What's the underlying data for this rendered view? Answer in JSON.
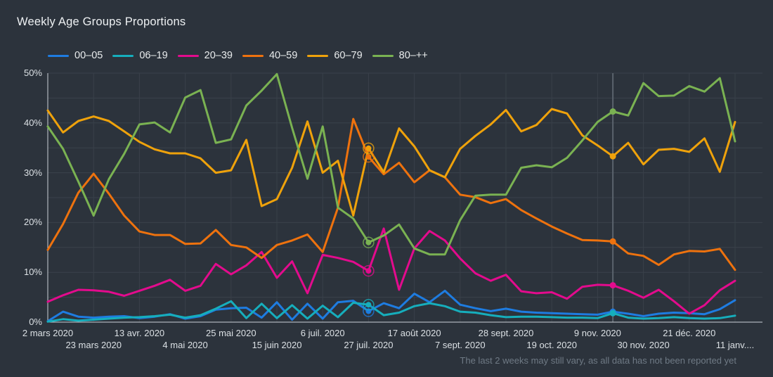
{
  "header": {
    "title": "Weekly Age Groups Proportions"
  },
  "footer": {
    "note": "The last 2 weeks may still vary, as all data has not been reported yet"
  },
  "colors": {
    "background": "#2c333c",
    "grid_horizontal": "#3a424b",
    "grid_vertical": "#394049",
    "axis_line": "#ccd2d7",
    "crosshair": "#5a636c",
    "tick_text": "#dbe0e4",
    "note_text": "#6f7a85"
  },
  "chart_data": {
    "type": "line",
    "title": "Weekly Age Groups Proportions",
    "xlabel": "",
    "ylabel": "",
    "ylim": [
      0,
      50
    ],
    "grid": "on",
    "legend_position": "top",
    "y_tick_labels": [
      "0%",
      "10%",
      "20%",
      "30%",
      "40%",
      "50%"
    ],
    "y_minor_grid_step_percent": 5,
    "week_count": 46,
    "x_start": "2 mars 2020",
    "x_interval": "weekly",
    "x_ticks_row1": [
      {
        "week": 0,
        "label": "2 mars 2020"
      },
      {
        "week": 6,
        "label": "13 avr. 2020"
      },
      {
        "week": 12,
        "label": "25 mai 2020"
      },
      {
        "week": 18,
        "label": "6 juil. 2020"
      },
      {
        "week": 24,
        "label": "17 août 2020"
      },
      {
        "week": 30,
        "label": "28 sept. 2020"
      },
      {
        "week": 36,
        "label": "9 nov. 2020"
      },
      {
        "week": 42,
        "label": "21 déc. 2020"
      }
    ],
    "x_ticks_row2": [
      {
        "week": 3,
        "label": "23 mars 2020"
      },
      {
        "week": 9,
        "label": "4 mai 2020"
      },
      {
        "week": 15,
        "label": "15 juin 2020"
      },
      {
        "week": 21,
        "label": "27 juil. 2020"
      },
      {
        "week": 27,
        "label": "7 sept. 2020"
      },
      {
        "week": 33,
        "label": "19 oct. 2020"
      },
      {
        "week": 39,
        "label": "30 nov. 2020"
      },
      {
        "week": 45,
        "label": "11 janv...."
      }
    ],
    "halo_marker_week": 21,
    "crosshair_marker_week": 37,
    "series": [
      {
        "name": "00–05",
        "color": "#1e7ce1",
        "values": [
          0.2,
          2.1,
          1.1,
          0.9,
          1.1,
          1.2,
          0.8,
          1.1,
          1.6,
          0.7,
          1.2,
          2.5,
          2.8,
          2.9,
          0.9,
          4.0,
          0.5,
          3.7,
          0.7,
          4.0,
          4.3,
          2.2,
          3.8,
          2.8,
          5.7,
          4.0,
          6.3,
          3.5,
          2.8,
          2.2,
          2.7,
          2.1,
          1.9,
          1.8,
          1.7,
          1.6,
          1.5,
          2.1,
          1.7,
          1.2,
          1.7,
          1.9,
          1.8,
          1.6,
          2.6,
          4.4
        ]
      },
      {
        "name": "06–19",
        "color": "#16aebc",
        "values": [
          0.1,
          0.6,
          0.3,
          0.5,
          0.7,
          0.9,
          1.0,
          1.2,
          1.5,
          0.9,
          1.4,
          2.7,
          4.2,
          0.8,
          3.7,
          0.8,
          3.4,
          0.7,
          3.3,
          1.0,
          3.9,
          3.5,
          1.4,
          1.9,
          3.2,
          3.8,
          3.2,
          2.1,
          1.9,
          1.4,
          1.0,
          1.1,
          1.1,
          1.0,
          0.9,
          0.9,
          0.8,
          1.8,
          0.9,
          0.7,
          0.8,
          1.0,
          0.8,
          0.7,
          0.8,
          1.3
        ]
      },
      {
        "name": "20–39",
        "color": "#e30b8d",
        "values": [
          4.1,
          5.4,
          6.5,
          6.4,
          6.1,
          5.3,
          6.3,
          7.3,
          8.5,
          6.3,
          7.3,
          11.7,
          9.6,
          11.4,
          14.1,
          8.9,
          12.2,
          5.8,
          13.5,
          12.9,
          12.1,
          10.3,
          18.8,
          6.5,
          14.8,
          18.3,
          16.4,
          12.8,
          9.8,
          8.3,
          9.5,
          6.2,
          5.8,
          6.0,
          4.7,
          7.1,
          7.5,
          7.4,
          6.3,
          4.9,
          6.5,
          4.2,
          1.7,
          3.4,
          6.4,
          8.3
        ]
      },
      {
        "name": "40–59",
        "color": "#ee720e",
        "values": [
          14.5,
          19.7,
          26.0,
          29.8,
          25.8,
          21.4,
          18.2,
          17.5,
          17.5,
          15.7,
          15.8,
          18.5,
          15.5,
          15.0,
          12.9,
          15.5,
          16.4,
          17.6,
          14.1,
          23.0,
          40.8,
          33.2,
          29.7,
          32.0,
          28.1,
          30.5,
          29.1,
          25.6,
          25.1,
          23.9,
          24.7,
          22.5,
          20.8,
          19.2,
          17.8,
          16.5,
          16.4,
          16.2,
          13.8,
          13.3,
          11.5,
          13.6,
          14.3,
          14.2,
          14.7,
          10.5
        ]
      },
      {
        "name": "60–79",
        "color": "#efa20b",
        "values": [
          42.5,
          38.1,
          40.4,
          41.3,
          40.4,
          38.3,
          36.2,
          34.7,
          33.9,
          33.9,
          32.9,
          30.0,
          30.5,
          36.6,
          23.3,
          24.7,
          31.0,
          40.3,
          30.0,
          32.4,
          21.4,
          34.9,
          30.1,
          38.9,
          35.3,
          30.5,
          29.1,
          34.8,
          37.4,
          39.7,
          42.6,
          38.3,
          39.6,
          42.8,
          41.9,
          37.5,
          35.5,
          33.3,
          36.0,
          31.7,
          34.6,
          34.8,
          34.2,
          36.9,
          30.2,
          40.2
        ]
      },
      {
        "name": "80–++",
        "color": "#7ab252",
        "values": [
          39.3,
          34.8,
          28.2,
          21.4,
          28.7,
          33.8,
          39.7,
          40.1,
          38.1,
          45.1,
          46.6,
          36.0,
          36.7,
          43.5,
          46.5,
          49.8,
          39.0,
          28.8,
          39.3,
          23.0,
          20.8,
          16.0,
          17.4,
          19.6,
          14.8,
          13.6,
          13.6,
          20.5,
          25.4,
          25.6,
          25.6,
          31.0,
          31.5,
          31.1,
          33.0,
          36.5,
          40.2,
          42.3,
          41.5,
          48.0,
          45.4,
          45.5,
          47.4,
          46.3,
          49.0,
          36.3
        ]
      }
    ]
  }
}
